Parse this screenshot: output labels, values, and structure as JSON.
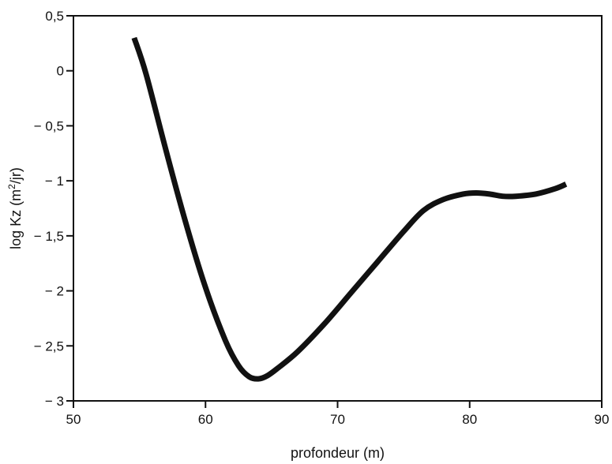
{
  "chart_data": {
    "type": "line",
    "title": "",
    "xlabel": "profondeur (m)",
    "ylabel": {
      "prefix": "log Kz (m",
      "superscript": "2",
      "suffix": "/jr)"
    },
    "xlim": [
      50,
      90
    ],
    "ylim": [
      -3,
      0.5
    ],
    "x_ticks": [
      {
        "value": 50,
        "label": "50"
      },
      {
        "value": 60,
        "label": "60"
      },
      {
        "value": 70,
        "label": "70"
      },
      {
        "value": 80,
        "label": "80"
      },
      {
        "value": 90,
        "label": "90"
      }
    ],
    "y_ticks": [
      {
        "value": 0.5,
        "label": "0,5"
      },
      {
        "value": 0,
        "label": "0"
      },
      {
        "value": -0.5,
        "label": "− 0,5"
      },
      {
        "value": -1,
        "label": "− 1"
      },
      {
        "value": -1.5,
        "label": "− 1,5"
      },
      {
        "value": -2,
        "label": "− 2"
      },
      {
        "value": -2.5,
        "label": "− 2,5"
      },
      {
        "value": -3,
        "label": "− 3"
      }
    ],
    "grid": false,
    "series": [
      {
        "color": "#111111",
        "x": [
          54.6,
          55.5,
          57,
          58.5,
          60,
          61.5,
          62.5,
          63.3,
          64,
          64.7,
          65.5,
          67,
          69,
          71,
          73,
          75,
          76.5,
          78,
          79.5,
          80.5,
          81.5,
          82.5,
          83.5,
          85,
          86.5,
          87.3
        ],
        "y": [
          0.3,
          -0.03,
          -0.72,
          -1.38,
          -1.97,
          -2.45,
          -2.68,
          -2.78,
          -2.8,
          -2.77,
          -2.7,
          -2.55,
          -2.3,
          -2.02,
          -1.74,
          -1.46,
          -1.27,
          -1.17,
          -1.12,
          -1.11,
          -1.12,
          -1.14,
          -1.14,
          -1.12,
          -1.07,
          -1.03
        ]
      }
    ]
  }
}
